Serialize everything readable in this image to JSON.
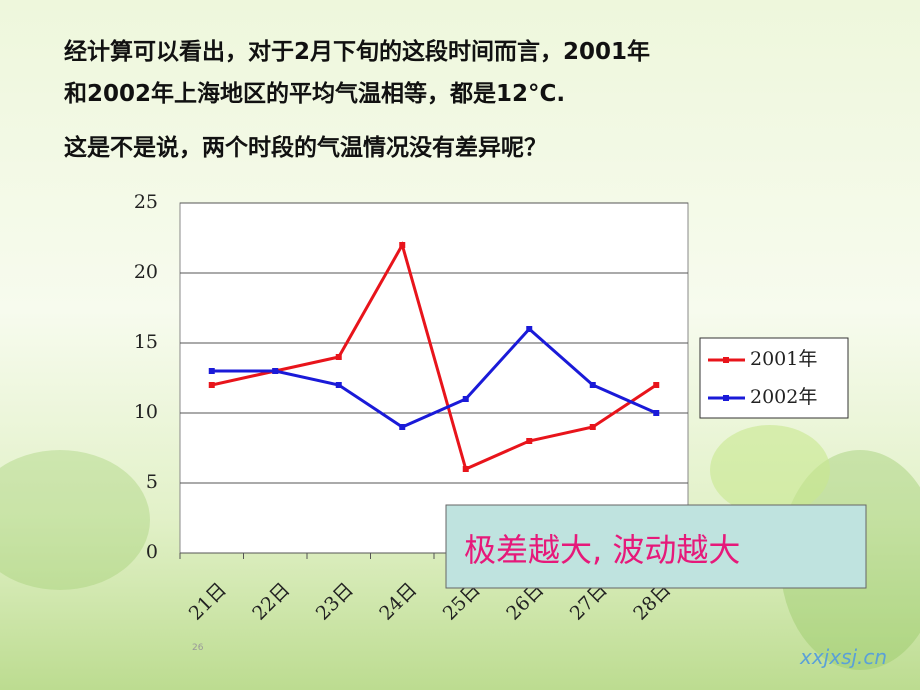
{
  "text": {
    "line1": "经计算可以看出，对于2月下旬的这段时间而言，2001年",
    "line2": "和2002年上海地区的平均气温相等，都是12°C.",
    "question": "这是不是说，两个时段的气温情况没有差异呢？"
  },
  "chart_data": {
    "type": "line",
    "categories": [
      "21日",
      "22日",
      "23日",
      "24日",
      "25日",
      "26日",
      "27日",
      "28日"
    ],
    "series": [
      {
        "name": "2001年",
        "color": "#e8141b",
        "values": [
          12,
          13,
          14,
          22,
          6,
          8,
          9,
          12
        ]
      },
      {
        "name": "2002年",
        "color": "#1a1ad8",
        "values": [
          13,
          13,
          12,
          9,
          11,
          16,
          12,
          10
        ]
      }
    ],
    "ylim": [
      0,
      25
    ],
    "yticks": [
      0,
      5,
      10,
      15,
      20,
      25
    ],
    "grid": true,
    "legend": "right",
    "annotation": "极差越大, 波动越大"
  },
  "page_number": "26",
  "watermark": "xxjxsj.cn"
}
